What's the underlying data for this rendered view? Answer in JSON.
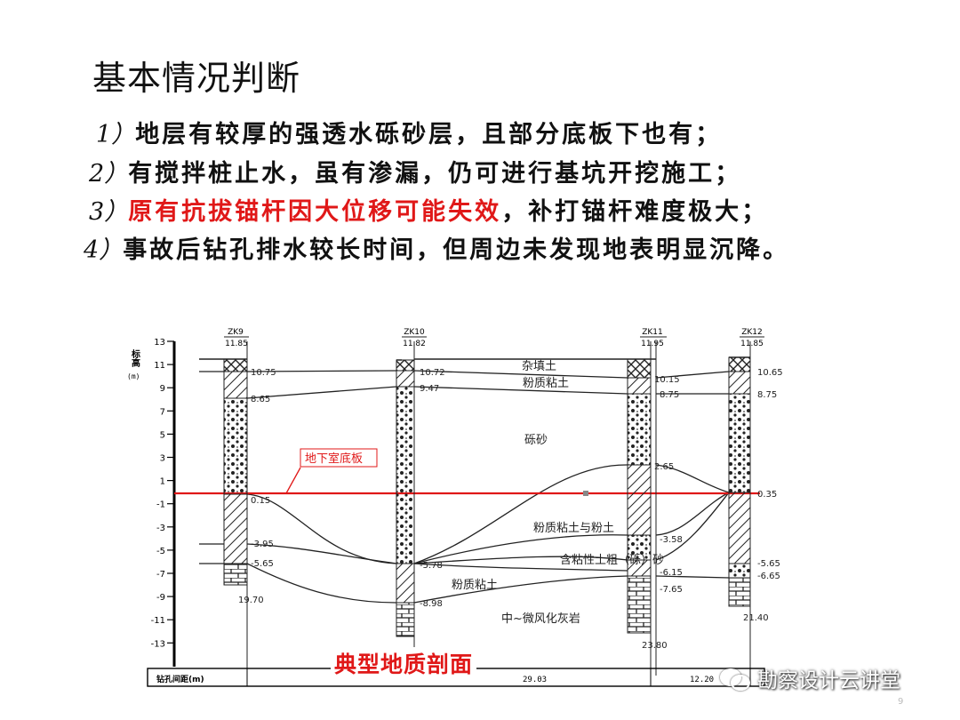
{
  "title": "基本情况判断",
  "points": [
    {
      "num": "1）",
      "text": "地层有较厚的强透水砾砂层，且部分底板下也有；"
    },
    {
      "num": "2）",
      "text": "有搅拌桩止水，虽有渗漏，仍可进行基坑开挖施工；"
    },
    {
      "num": "3）",
      "text_red": "原有抗拔锚杆因大位移可能失效",
      "text": "，补打锚杆难度极大；"
    },
    {
      "num": "4）",
      "text": "事故后钻孔排水较长时间，但周边未发现地表明显沉降。"
    }
  ],
  "section": {
    "axis_title": "标高",
    "axis_unit": "(m)",
    "elevation_ticks": [
      "13",
      "11",
      "9",
      "7",
      "5",
      "3",
      "1",
      "-1",
      "-3",
      "-5",
      "-7",
      "-9",
      "-11",
      "-13"
    ],
    "boreholes": [
      {
        "id": "ZK9",
        "ground_elevation": "11.85",
        "bottom_depth": "19.70",
        "layer_tops": [
          "10.75",
          "8.65",
          "0.15",
          "-3.95",
          "-5.65"
        ]
      },
      {
        "id": "ZK10",
        "ground_elevation": "11.82",
        "bottom_depth": "",
        "layer_tops": [
          "10.72",
          "9.47",
          "-5.78",
          "-8.98"
        ]
      },
      {
        "id": "ZK11",
        "ground_elevation": "11.95",
        "bottom_depth": "23.80",
        "layer_tops": [
          "10.15",
          "8.75",
          "2.65",
          "-3.58",
          "-6.15",
          "-7.65"
        ]
      },
      {
        "id": "ZK12",
        "ground_elevation": "11.85",
        "bottom_depth": "21.40",
        "layer_tops": [
          "10.65",
          "8.75",
          "0.35",
          "-5.65",
          "-6.65"
        ]
      }
    ],
    "strata": [
      "杂填土",
      "粉质粘土",
      "砾砂",
      "粉质粘土与粉土",
      "含粘性土粗（砾）砂",
      "粉质粘土",
      "中~微风化灰岩"
    ],
    "basement_floor_label": "地下室底板",
    "spacing_label": "钻孔间距(m)",
    "spacings": [
      "29.03",
      "12.20"
    ],
    "colors": {
      "basement_line": "#e01818",
      "text_red": "#e01818"
    }
  },
  "caption": "典型地质剖面",
  "watermark": "勘察设计云讲堂",
  "page_number": "9"
}
